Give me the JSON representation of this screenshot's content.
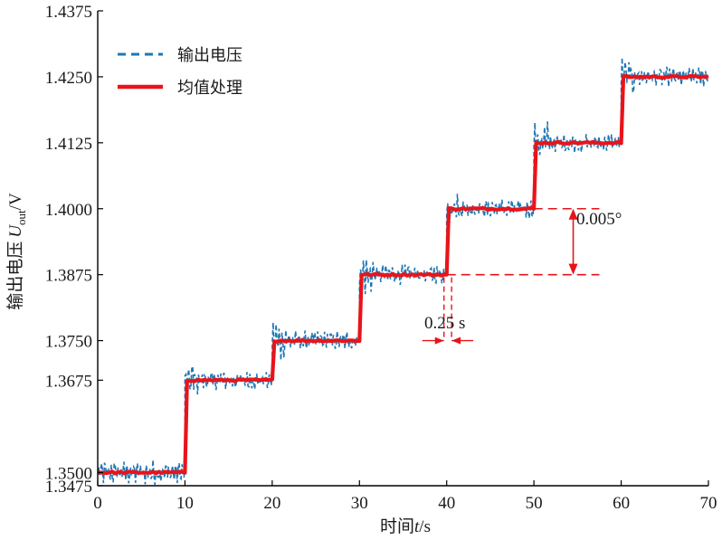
{
  "chart_data": {
    "type": "line",
    "xlabel_cn": "时间",
    "xlabel_var": "t",
    "xlabel_unit": "/s",
    "ylabel_cn": "输出电压",
    "ylabel_var": "U",
    "ylabel_sub": "out",
    "ylabel_unit": "/V",
    "xlim": [
      0,
      70
    ],
    "ylim": [
      1.3475,
      1.4375
    ],
    "x_ticks": [
      "0",
      "10",
      "20",
      "30",
      "40",
      "50",
      "60",
      "70"
    ],
    "y_ticks": [
      "1.3475",
      "1.3500",
      "1.3675",
      "1.3750",
      "1.3875",
      "1.4000",
      "1.4125",
      "1.4250",
      "1.4375"
    ],
    "grid": false,
    "legend_position": "top-left",
    "series": [
      {
        "name": "输出电压",
        "style": "dashed",
        "color": "#1f77b4",
        "steps": [
          {
            "x_start": 0,
            "x_end": 10,
            "y": 1.35
          },
          {
            "x_start": 10,
            "x_end": 20,
            "y": 1.3675
          },
          {
            "x_start": 20,
            "x_end": 30,
            "y": 1.375
          },
          {
            "x_start": 30,
            "x_end": 40,
            "y": 1.3875
          },
          {
            "x_start": 40,
            "x_end": 50,
            "y": 1.4
          },
          {
            "x_start": 50,
            "x_end": 60,
            "y": 1.4125
          },
          {
            "x_start": 60,
            "x_end": 70,
            "y": 1.425
          }
        ],
        "noise_amplitude": 0.0018
      },
      {
        "name": "均值处理",
        "style": "solid",
        "color": "#e8141a",
        "steps": [
          {
            "x_start": 0,
            "x_end": 10,
            "y": 1.35
          },
          {
            "x_start": 10,
            "x_end": 20,
            "y": 1.3675
          },
          {
            "x_start": 20,
            "x_end": 30,
            "y": 1.375
          },
          {
            "x_start": 30,
            "x_end": 40,
            "y": 1.3875
          },
          {
            "x_start": 40,
            "x_end": 50,
            "y": 1.4
          },
          {
            "x_start": 50,
            "x_end": 60,
            "y": 1.4125
          },
          {
            "x_start": 60,
            "x_end": 70,
            "y": 1.425
          }
        ]
      }
    ],
    "annotations": [
      {
        "text": "0.005°",
        "between_y": [
          1.3875,
          1.4
        ],
        "x_from": 40,
        "x_to": 57.5,
        "arrow_x": 54.5
      },
      {
        "text": "0.25 s",
        "between_x": [
          40,
          40.25
        ],
        "y": 1.375
      }
    ]
  },
  "colors": {
    "accent_red": "#e8141a",
    "accent_blue": "#1f77b4"
  }
}
